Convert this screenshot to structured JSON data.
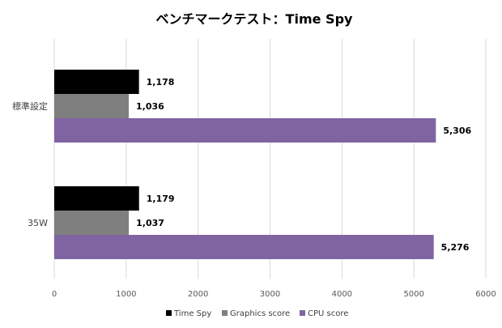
{
  "chart_data": {
    "type": "bar",
    "orientation": "horizontal",
    "title": "ベンチマークテスト：Time Spy",
    "categories": [
      "標準設定",
      "35W"
    ],
    "series": [
      {
        "name": "Time Spy",
        "values": [
          1178,
          1179
        ],
        "labels": [
          "1,178",
          "1,179"
        ],
        "color": "#000000"
      },
      {
        "name": "Graphics score",
        "values": [
          1036,
          1037
        ],
        "labels": [
          "1,036",
          "1,037"
        ],
        "color": "#7f7f7f"
      },
      {
        "name": "CPU score",
        "values": [
          5306,
          5276
        ],
        "labels": [
          "5,306",
          "5,276"
        ],
        "color": "#8064a2"
      }
    ],
    "xlim": [
      0,
      6000
    ],
    "xticks": [
      "0",
      "1000",
      "2000",
      "3000",
      "4000",
      "5000",
      "6000"
    ],
    "xtick_values": [
      0,
      1000,
      2000,
      3000,
      4000,
      5000,
      6000
    ],
    "grid": "vertical",
    "legend": "bottom",
    "xlabel": "",
    "ylabel": ""
  }
}
